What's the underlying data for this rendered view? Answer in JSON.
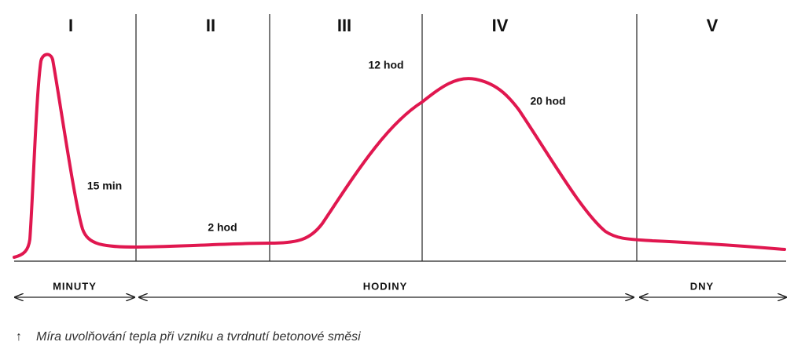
{
  "phases": [
    "I",
    "II",
    "III",
    "IV",
    "V"
  ],
  "annotations": {
    "peak_minutes": "15 min",
    "plateau": "2 hod",
    "rise": "12 hod",
    "fall": "20 hod"
  },
  "time_ranges": [
    "MINUTY",
    "HODINY",
    "DNY"
  ],
  "caption": {
    "icon": "↑",
    "text": "Míra uvolňování tepla při vzniku a tvrdnutí betonové směsi"
  }
}
